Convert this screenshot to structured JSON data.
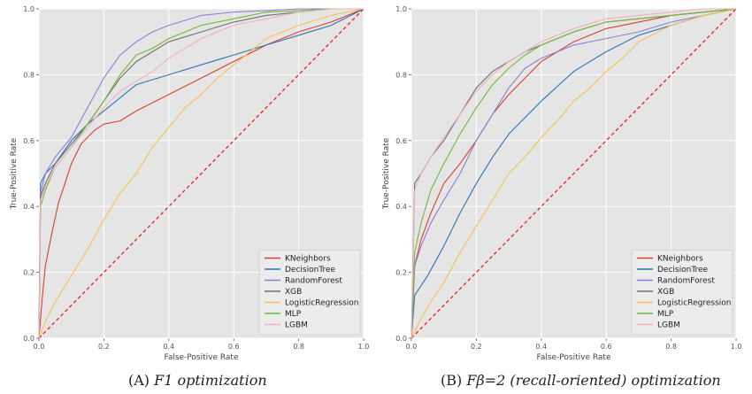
{
  "captions": [
    {
      "prefix": "(A) ",
      "title": "F1 optimization"
    },
    {
      "prefix": "(B) ",
      "title": "Fβ=2 (recall-oriented) optimization"
    }
  ],
  "colors": {
    "KNeighbors": "#d9402e",
    "DecisionTree": "#2f74b5",
    "RandomForest": "#8b7fd6",
    "XGB": "#6f6f6f",
    "LogisticRegression": "#f7c04e",
    "MLP": "#74b83a",
    "LGBM": "#f2b0b8",
    "diagonal": "#e82020"
  },
  "chart_data": [
    {
      "type": "line",
      "xlabel": "False-Positive Rate",
      "ylabel": "True-Positive Rate",
      "xlim": [
        0,
        1
      ],
      "ylim": [
        0,
        1
      ],
      "xticks": [
        "0.0",
        "0.2",
        "0.4",
        "0.6",
        "0.8",
        "1.0"
      ],
      "yticks": [
        "0.0",
        "0.2",
        "0.4",
        "0.6",
        "0.8",
        "1.0"
      ],
      "grid": true,
      "legend_position": "bottom-right",
      "diagonal": true,
      "series": [
        {
          "name": "KNeighbors",
          "x": [
            0,
            0.01,
            0.02,
            0.04,
            0.06,
            0.08,
            0.1,
            0.13,
            0.17,
            0.2,
            0.25,
            0.3,
            0.4,
            0.5,
            0.6,
            0.7,
            0.8,
            0.9,
            1.0
          ],
          "y": [
            0,
            0.12,
            0.22,
            0.32,
            0.41,
            0.47,
            0.53,
            0.59,
            0.63,
            0.65,
            0.66,
            0.69,
            0.74,
            0.79,
            0.84,
            0.89,
            0.93,
            0.96,
            1.0
          ]
        },
        {
          "name": "DecisionTree",
          "x": [
            0,
            0.005,
            0.02,
            0.05,
            0.1,
            0.15,
            0.2,
            0.25,
            0.3,
            0.4,
            0.5,
            0.6,
            0.7,
            0.8,
            0.9,
            1.0
          ],
          "y": [
            0,
            0.47,
            0.5,
            0.53,
            0.6,
            0.65,
            0.69,
            0.73,
            0.77,
            0.8,
            0.83,
            0.86,
            0.89,
            0.92,
            0.95,
            1.0
          ]
        },
        {
          "name": "RandomForest",
          "x": [
            0,
            0.005,
            0.02,
            0.05,
            0.1,
            0.15,
            0.2,
            0.25,
            0.3,
            0.35,
            0.4,
            0.5,
            0.6,
            0.7,
            0.8,
            0.9,
            1.0
          ],
          "y": [
            0,
            0.44,
            0.5,
            0.55,
            0.61,
            0.7,
            0.79,
            0.86,
            0.9,
            0.93,
            0.95,
            0.98,
            0.99,
            0.995,
            1.0,
            1.0,
            1.0
          ]
        },
        {
          "name": "XGB",
          "x": [
            0,
            0.005,
            0.02,
            0.05,
            0.1,
            0.15,
            0.2,
            0.25,
            0.3,
            0.35,
            0.4,
            0.5,
            0.6,
            0.7,
            0.8,
            0.9,
            1.0
          ],
          "y": [
            0,
            0.43,
            0.47,
            0.53,
            0.59,
            0.65,
            0.72,
            0.79,
            0.84,
            0.87,
            0.9,
            0.93,
            0.96,
            0.98,
            0.99,
            1.0,
            1.0
          ]
        },
        {
          "name": "LogisticRegression",
          "x": [
            0,
            0.02,
            0.05,
            0.1,
            0.15,
            0.2,
            0.25,
            0.3,
            0.35,
            0.4,
            0.45,
            0.5,
            0.55,
            0.6,
            0.65,
            0.7,
            0.8,
            0.9,
            1.0
          ],
          "y": [
            0,
            0.05,
            0.11,
            0.19,
            0.27,
            0.36,
            0.44,
            0.5,
            0.58,
            0.64,
            0.7,
            0.74,
            0.79,
            0.83,
            0.87,
            0.91,
            0.95,
            0.98,
            1.0
          ]
        },
        {
          "name": "MLP",
          "x": [
            0,
            0.005,
            0.02,
            0.05,
            0.1,
            0.15,
            0.2,
            0.25,
            0.3,
            0.35,
            0.4,
            0.5,
            0.6,
            0.7,
            0.8,
            0.9,
            1.0
          ],
          "y": [
            0,
            0.4,
            0.45,
            0.52,
            0.58,
            0.65,
            0.72,
            0.8,
            0.86,
            0.88,
            0.91,
            0.95,
            0.97,
            0.99,
            0.995,
            1.0,
            1.0
          ]
        },
        {
          "name": "LGBM",
          "x": [
            0,
            0.005,
            0.02,
            0.05,
            0.1,
            0.15,
            0.2,
            0.25,
            0.3,
            0.35,
            0.4,
            0.5,
            0.6,
            0.7,
            0.8,
            0.9,
            1.0
          ],
          "y": [
            0,
            0.42,
            0.46,
            0.52,
            0.58,
            0.64,
            0.7,
            0.75,
            0.78,
            0.81,
            0.85,
            0.91,
            0.95,
            0.97,
            0.99,
            1.0,
            1.0
          ]
        }
      ]
    },
    {
      "type": "line",
      "xlabel": "False-Positive Rate",
      "ylabel": "True-Positive Rate",
      "xlim": [
        0,
        1
      ],
      "ylim": [
        0,
        1
      ],
      "xticks": [
        "0.0",
        "0.2",
        "0.4",
        "0.6",
        "0.8",
        "1.0"
      ],
      "yticks": [
        "0.0",
        "0.2",
        "0.4",
        "0.6",
        "0.8",
        "1.0"
      ],
      "grid": true,
      "legend_position": "bottom-right",
      "diagonal": true,
      "series": [
        {
          "name": "KNeighbors",
          "x": [
            0,
            0.01,
            0.03,
            0.06,
            0.1,
            0.15,
            0.2,
            0.25,
            0.3,
            0.35,
            0.4,
            0.5,
            0.6,
            0.7,
            0.8,
            0.9,
            1.0
          ],
          "y": [
            0,
            0.22,
            0.3,
            0.38,
            0.47,
            0.53,
            0.6,
            0.68,
            0.74,
            0.79,
            0.84,
            0.9,
            0.94,
            0.96,
            0.98,
            0.99,
            1.0
          ]
        },
        {
          "name": "DecisionTree",
          "x": [
            0,
            0.01,
            0.05,
            0.1,
            0.15,
            0.2,
            0.25,
            0.3,
            0.35,
            0.4,
            0.5,
            0.6,
            0.7,
            0.8,
            0.9,
            1.0
          ],
          "y": [
            0,
            0.13,
            0.19,
            0.28,
            0.38,
            0.47,
            0.55,
            0.62,
            0.67,
            0.72,
            0.81,
            0.87,
            0.92,
            0.95,
            0.98,
            1.0
          ]
        },
        {
          "name": "RandomForest",
          "x": [
            0,
            0.01,
            0.03,
            0.06,
            0.1,
            0.15,
            0.2,
            0.25,
            0.3,
            0.35,
            0.4,
            0.5,
            0.6,
            0.7,
            0.8,
            0.9,
            1.0
          ],
          "y": [
            0,
            0.22,
            0.28,
            0.35,
            0.42,
            0.5,
            0.6,
            0.68,
            0.76,
            0.82,
            0.85,
            0.89,
            0.91,
            0.93,
            0.96,
            0.98,
            1.0
          ]
        },
        {
          "name": "XGB",
          "x": [
            0,
            0.01,
            0.03,
            0.06,
            0.1,
            0.15,
            0.2,
            0.25,
            0.3,
            0.35,
            0.4,
            0.5,
            0.6,
            0.7,
            0.8,
            0.9,
            1.0
          ],
          "y": [
            0,
            0.47,
            0.5,
            0.55,
            0.6,
            0.68,
            0.76,
            0.81,
            0.84,
            0.87,
            0.89,
            0.93,
            0.96,
            0.97,
            0.98,
            0.99,
            1.0
          ]
        },
        {
          "name": "LogisticRegression",
          "x": [
            0,
            0.03,
            0.06,
            0.1,
            0.15,
            0.2,
            0.25,
            0.3,
            0.35,
            0.4,
            0.45,
            0.5,
            0.55,
            0.6,
            0.65,
            0.7,
            0.8,
            0.9,
            1.0
          ],
          "y": [
            0,
            0.06,
            0.11,
            0.17,
            0.26,
            0.34,
            0.42,
            0.5,
            0.55,
            0.61,
            0.66,
            0.72,
            0.76,
            0.81,
            0.85,
            0.9,
            0.95,
            0.98,
            1.0
          ]
        },
        {
          "name": "MLP",
          "x": [
            0,
            0.01,
            0.03,
            0.06,
            0.1,
            0.15,
            0.2,
            0.25,
            0.3,
            0.35,
            0.4,
            0.5,
            0.6,
            0.7,
            0.8,
            0.9,
            1.0
          ],
          "y": [
            0,
            0.26,
            0.35,
            0.45,
            0.53,
            0.62,
            0.7,
            0.77,
            0.82,
            0.86,
            0.89,
            0.93,
            0.96,
            0.97,
            0.98,
            0.99,
            1.0
          ]
        },
        {
          "name": "LGBM",
          "x": [
            0,
            0.01,
            0.03,
            0.06,
            0.1,
            0.15,
            0.2,
            0.25,
            0.3,
            0.35,
            0.4,
            0.5,
            0.6,
            0.7,
            0.8,
            0.9,
            1.0
          ],
          "y": [
            0,
            0.45,
            0.5,
            0.55,
            0.61,
            0.68,
            0.75,
            0.8,
            0.84,
            0.87,
            0.9,
            0.94,
            0.97,
            0.98,
            0.99,
            1.0,
            1.0
          ]
        }
      ]
    }
  ]
}
